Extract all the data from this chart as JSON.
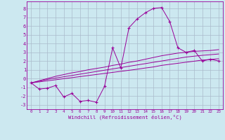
{
  "x": [
    0,
    1,
    2,
    3,
    4,
    5,
    6,
    7,
    8,
    9,
    10,
    11,
    12,
    13,
    14,
    15,
    16,
    17,
    18,
    19,
    20,
    21,
    22,
    23
  ],
  "y_main": [
    -0.5,
    -1.2,
    -1.1,
    -0.8,
    -2.1,
    -1.7,
    -2.6,
    -2.5,
    -2.7,
    -0.9,
    3.5,
    1.2,
    5.8,
    6.8,
    7.5,
    8.0,
    8.1,
    6.5,
    3.5,
    3.0,
    3.2,
    2.0,
    2.2,
    2.0
  ],
  "y_upper": [
    -0.5,
    -0.25,
    0.0,
    0.25,
    0.45,
    0.65,
    0.8,
    1.0,
    1.15,
    1.3,
    1.5,
    1.65,
    1.85,
    2.0,
    2.2,
    2.4,
    2.6,
    2.75,
    2.9,
    3.0,
    3.1,
    3.15,
    3.2,
    3.3
  ],
  "y_mid": [
    -0.5,
    -0.3,
    -0.1,
    0.05,
    0.2,
    0.35,
    0.5,
    0.65,
    0.8,
    0.95,
    1.1,
    1.25,
    1.4,
    1.55,
    1.7,
    1.85,
    2.0,
    2.15,
    2.3,
    2.45,
    2.55,
    2.65,
    2.72,
    2.8
  ],
  "y_lower": [
    -0.5,
    -0.38,
    -0.26,
    -0.14,
    -0.02,
    0.1,
    0.22,
    0.34,
    0.46,
    0.58,
    0.7,
    0.82,
    0.94,
    1.06,
    1.2,
    1.32,
    1.5,
    1.62,
    1.74,
    1.86,
    1.98,
    2.1,
    2.18,
    2.26
  ],
  "line_color": "#990099",
  "bg_color": "#cce8f0",
  "grid_color": "#aabbcc",
  "xlabel": "Windchill (Refroidissement éolien,°C)",
  "ylim": [
    -3.5,
    8.8
  ],
  "xlim": [
    -0.5,
    23.5
  ],
  "yticks": [
    -3,
    -2,
    -1,
    0,
    1,
    2,
    3,
    4,
    5,
    6,
    7,
    8
  ],
  "xticks": [
    0,
    1,
    2,
    3,
    4,
    5,
    6,
    7,
    8,
    9,
    10,
    11,
    12,
    13,
    14,
    15,
    16,
    17,
    18,
    19,
    20,
    21,
    22,
    23
  ]
}
